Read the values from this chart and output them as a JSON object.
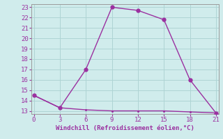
{
  "line1_x": [
    0,
    3,
    6,
    9,
    12,
    15,
    18,
    21
  ],
  "line1_y": [
    14.5,
    13.3,
    17.0,
    23.0,
    22.7,
    21.8,
    16.0,
    12.8
  ],
  "line2_x": [
    0,
    3,
    6,
    9,
    12,
    15,
    18,
    21
  ],
  "line2_y": [
    14.5,
    13.3,
    13.1,
    13.0,
    13.0,
    13.0,
    12.9,
    12.8
  ],
  "line_color": "#9b30a0",
  "bg_color": "#d0ecec",
  "grid_color": "#aed4d4",
  "xlabel": "Windchill (Refroidissement éolien,°C)",
  "xlabel_color": "#9b30a0",
  "tick_color": "#9b30a0",
  "spine_color": "#9b9b9b",
  "xlim": [
    -0.3,
    21.3
  ],
  "ylim": [
    12.7,
    23.3
  ],
  "xticks": [
    0,
    3,
    6,
    9,
    12,
    15,
    18,
    21
  ],
  "yticks": [
    13,
    14,
    15,
    16,
    17,
    18,
    19,
    20,
    21,
    22,
    23
  ],
  "marker_size": 3.5,
  "linewidth": 1.0,
  "tick_fontsize": 6.5,
  "xlabel_fontsize": 6.5
}
